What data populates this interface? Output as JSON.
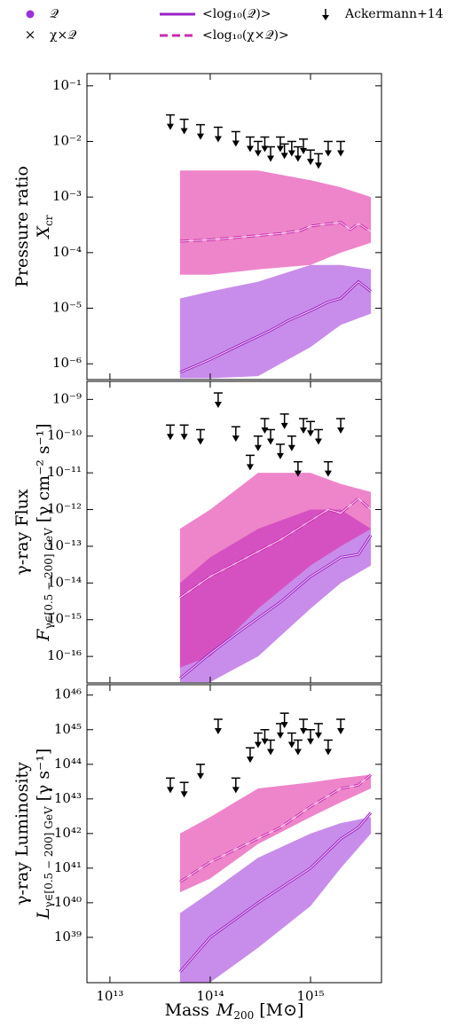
{
  "legend_title": null,
  "xlabel": {
    "text": "Mass",
    "symbol": "M",
    "sub": "200",
    "unit": "[M⊙]"
  },
  "chart_data": [
    {
      "type": "scatter",
      "log": true,
      "ylabel": {
        "text": "Pressure ratio",
        "symbol": "X",
        "sub": "cr"
      },
      "xlim": [
        5900000000000.0,
        5100000000000000.0
      ],
      "ylim": [
        5.2e-07,
        0.166
      ],
      "xticks": [
        10000000000000.0,
        100000000000000.0,
        1000000000000000.0
      ],
      "yticks": [
        {
          "value": 0.1,
          "label": "10⁻¹"
        },
        {
          "value": 0.01,
          "label": "10⁻²"
        },
        {
          "value": 0.001,
          "label": "10⁻³"
        },
        {
          "value": 0.0001,
          "label": "10⁻⁴"
        },
        {
          "value": 1e-05,
          "label": "10⁻⁵"
        },
        {
          "value": 1e-06,
          "label": "10⁻⁶"
        }
      ],
      "series": [
        {
          "name": "𝒬",
          "kind": "band",
          "color": "#9b30d9",
          "x": [
            50000000000000.0,
            100000000000000.0,
            300000000000000.0,
            1000000000000000.0,
            2000000000000000.0,
            4000000000000000.0
          ],
          "lower": [
            5.5e-07,
            5.5e-07,
            6e-07,
            2e-06,
            5e-06,
            8e-06
          ],
          "upper": [
            1.5e-05,
            2e-05,
            3e-05,
            6e-05,
            6e-05,
            5e-05
          ]
        },
        {
          "name": "χ×𝒬",
          "kind": "band",
          "color": "#e0209e",
          "x": [
            50000000000000.0,
            100000000000000.0,
            300000000000000.0,
            1000000000000000.0,
            2000000000000000.0,
            4000000000000000.0
          ],
          "lower": [
            4e-05,
            4e-05,
            5e-05,
            6e-05,
            0.0001,
            0.00015
          ],
          "upper": [
            0.003,
            0.003,
            0.003,
            0.002,
            0.0015,
            0.001
          ]
        },
        {
          "name": "<log₁₀(𝒬)>",
          "kind": "line",
          "color": "#9b22c8",
          "x": [
            50000000000000.0,
            100000000000000.0,
            200000000000000.0,
            400000000000000.0,
            600000000000000.0,
            1000000000000000.0,
            1500000000000000.0,
            2000000000000000.0,
            3000000000000000.0,
            4000000000000000.0
          ],
          "values": [
            7e-07,
            1.2e-06,
            2.2e-06,
            4e-06,
            6e-06,
            9e-06,
            1.3e-05,
            1.5e-05,
            3e-05,
            2e-05
          ]
        },
        {
          "name": "<log₁₀(χ×𝒬)>",
          "kind": "dash",
          "color": "#cc2aae",
          "x": [
            50000000000000.0,
            100000000000000.0,
            200000000000000.0,
            500000000000000.0,
            800000000000000.0,
            1000000000000000.0,
            1500000000000000.0,
            2000000000000000.0,
            2500000000000000.0,
            3000000000000000.0,
            4000000000000000.0
          ],
          "values": [
            0.00016,
            0.00017,
            0.00019,
            0.00022,
            0.00025,
            0.0003,
            0.00033,
            0.00035,
            0.00026,
            0.00033,
            0.00024
          ]
        },
        {
          "name": "Ackermann+14",
          "kind": "limit",
          "color": "#000000",
          "x": [
            40000000000000.0,
            55000000000000.0,
            80000000000000.0,
            120000000000000.0,
            180000000000000.0,
            250000000000000.0,
            300000000000000.0,
            350000000000000.0,
            400000000000000.0,
            500000000000000.0,
            550000000000000.0,
            650000000000000.0,
            750000000000000.0,
            850000000000000.0,
            1000000000000000.0,
            1200000000000000.0,
            1500000000000000.0,
            2000000000000000.0
          ],
          "values": [
            0.03,
            0.025,
            0.02,
            0.018,
            0.015,
            0.012,
            0.01,
            0.012,
            0.008,
            0.012,
            0.009,
            0.01,
            0.008,
            0.011,
            0.007,
            0.006,
            0.01,
            0.01
          ]
        }
      ]
    },
    {
      "type": "scatter",
      "log": true,
      "ylabel": {
        "text": "γ-ray Flux",
        "symbol": "F",
        "sub": "γ∈[0.5 − 200] GeV",
        "unit": "[γ cm⁻² s⁻¹]"
      },
      "xlim": [
        5900000000000.0,
        5100000000000000.0
      ],
      "ylim": [
        1.9e-17,
        3.1e-09
      ],
      "xticks": [
        10000000000000.0,
        100000000000000.0,
        1000000000000000.0
      ],
      "yticks": [
        {
          "value": 1e-09,
          "label": "10⁻⁹"
        },
        {
          "value": 1e-10,
          "label": "10⁻¹⁰"
        },
        {
          "value": 1e-11,
          "label": "10⁻¹¹"
        },
        {
          "value": 1e-12,
          "label": "10⁻¹²"
        },
        {
          "value": 1e-13,
          "label": "10⁻¹³"
        },
        {
          "value": 1e-14,
          "label": "10⁻¹⁴"
        },
        {
          "value": 1e-15,
          "label": "10⁻¹⁵"
        },
        {
          "value": 1e-16,
          "label": "10⁻¹⁶"
        }
      ],
      "series": [
        {
          "kind": "band",
          "color": "#9b30d9",
          "x": [
            50000000000000.0,
            100000000000000.0,
            300000000000000.0,
            1000000000000000.0,
            2000000000000000.0,
            4000000000000000.0
          ],
          "lower": [
            2e-17,
            2e-17,
            1e-16,
            2e-15,
            1e-14,
            3e-14
          ],
          "upper": [
            1e-14,
            5e-14,
            3e-13,
            1e-12,
            1e-12,
            3e-13
          ]
        },
        {
          "kind": "band",
          "color": "#e0209e",
          "x": [
            50000000000000.0,
            100000000000000.0,
            300000000000000.0,
            1000000000000000.0,
            2000000000000000.0,
            4000000000000000.0
          ],
          "lower": [
            5e-17,
            1e-16,
            2e-15,
            3e-14,
            1e-13,
            3e-13
          ],
          "upper": [
            3e-13,
            1e-12,
            1e-11,
            1e-11,
            5e-12,
            3e-12
          ]
        },
        {
          "kind": "line",
          "color": "#9b22c8",
          "x": [
            50000000000000.0,
            100000000000000.0,
            200000000000000.0,
            500000000000000.0,
            1000000000000000.0,
            1500000000000000.0,
            2000000000000000.0,
            3000000000000000.0,
            4000000000000000.0
          ],
          "values": [
            2.5e-17,
            1.2e-16,
            5e-16,
            3e-15,
            1.5e-14,
            3e-14,
            5e-14,
            6e-14,
            2e-13
          ]
        },
        {
          "kind": "dash",
          "color": "#cc2aae",
          "x": [
            50000000000000.0,
            100000000000000.0,
            200000000000000.0,
            500000000000000.0,
            1000000000000000.0,
            1500000000000000.0,
            2000000000000000.0,
            3000000000000000.0,
            4000000000000000.0
          ],
          "values": [
            4e-15,
            1.5e-14,
            4e-14,
            1.5e-13,
            5e-13,
            1e-12,
            8e-13,
            2e-12,
            1e-12
          ]
        },
        {
          "kind": "limit",
          "color": "#000000",
          "x": [
            40000000000000.0,
            55000000000000.0,
            80000000000000.0,
            120000000000000.0,
            180000000000000.0,
            250000000000000.0,
            300000000000000.0,
            350000000000000.0,
            400000000000000.0,
            500000000000000.0,
            550000000000000.0,
            650000000000000.0,
            750000000000000.0,
            850000000000000.0,
            1000000000000000.0,
            1200000000000000.0,
            1500000000000000.0,
            2000000000000000.0
          ],
          "values": [
            2e-10,
            2e-10,
            1.5e-10,
            1.5e-09,
            1.8e-10,
            3e-11,
            1e-10,
            3e-10,
            1.5e-10,
            6e-11,
            4e-10,
            1e-10,
            2e-11,
            3e-10,
            2.5e-10,
            1.5e-10,
            2e-11,
            3e-10
          ]
        }
      ]
    },
    {
      "type": "scatter",
      "log": true,
      "ylabel": {
        "text": "γ-ray Luminosity",
        "symbol": "L",
        "sub": "γ∈[0.5 − 200] GeV",
        "unit": "[γ s⁻¹]"
      },
      "xlim": [
        5900000000000.0,
        5100000000000000.0
      ],
      "ylim": [
        4.9e+37,
        2e+46
      ],
      "xticks": [
        {
          "value": 10000000000000.0,
          "label": "10¹³"
        },
        {
          "value": 100000000000000.0,
          "label": "10¹⁴"
        },
        {
          "value": 1000000000000000.0,
          "label": "10¹⁵"
        }
      ],
      "yticks": [
        {
          "value": 1e+46,
          "label": "10⁴⁶"
        },
        {
          "value": 1e+45,
          "label": "10⁴⁵"
        },
        {
          "value": 1e+44,
          "label": "10⁴⁴"
        },
        {
          "value": 1e+43,
          "label": "10⁴³"
        },
        {
          "value": 1e+42,
          "label": "10⁴²"
        },
        {
          "value": 1e+41,
          "label": "10⁴¹"
        },
        {
          "value": 1e+40,
          "label": "10⁴⁰"
        },
        {
          "value": 1e+39,
          "label": "10³⁹"
        }
      ],
      "series": [
        {
          "kind": "band",
          "color": "#9b30d9",
          "x": [
            50000000000000.0,
            100000000000000.0,
            300000000000000.0,
            1000000000000000.0,
            2000000000000000.0,
            4000000000000000.0
          ],
          "lower": [
            5e+37,
            5e+37,
            5e+38,
            8e+39,
            1e+41,
            1e+42
          ],
          "upper": [
            5e+39,
            2e+40,
            2e+41,
            1e+42,
            2e+42,
            3e+42
          ]
        },
        {
          "kind": "band",
          "color": "#e0209e",
          "x": [
            50000000000000.0,
            100000000000000.0,
            300000000000000.0,
            1000000000000000.0,
            2000000000000000.0,
            4000000000000000.0
          ],
          "lower": [
            2e+40,
            5e+40,
            5e+41,
            3e+42,
            8e+42,
            2e+43
          ],
          "upper": [
            1e+42,
            3e+42,
            2e+43,
            3e+43,
            4e+43,
            5e+43
          ]
        },
        {
          "kind": "line",
          "color": "#9b22c8",
          "x": [
            50000000000000.0,
            100000000000000.0,
            300000000000000.0,
            1000000000000000.0,
            2000000000000000.0,
            3000000000000000.0,
            4000000000000000.0
          ],
          "values": [
            1e+38,
            1e+39,
            1e+40,
            1e+41,
            7e+41,
            1.5e+42,
            4e+42
          ]
        },
        {
          "kind": "dash",
          "color": "#cc2aae",
          "x": [
            50000000000000.0,
            100000000000000.0,
            500000000000000.0,
            1000000000000000.0,
            2000000000000000.0,
            3000000000000000.0,
            4000000000000000.0
          ],
          "values": [
            4e+40,
            1.5e+41,
            1.5e+42,
            6e+42,
            2e+43,
            2.5e+43,
            5e+43
          ]
        },
        {
          "kind": "limit",
          "color": "#000000",
          "x": [
            40000000000000.0,
            55000000000000.0,
            80000000000000.0,
            120000000000000.0,
            180000000000000.0,
            250000000000000.0,
            300000000000000.0,
            350000000000000.0,
            400000000000000.0,
            500000000000000.0,
            550000000000000.0,
            650000000000000.0,
            750000000000000.0,
            850000000000000.0,
            1000000000000000.0,
            1200000000000000.0,
            1500000000000000.0,
            2000000000000000.0
          ],
          "values": [
            4e+43,
            3e+43,
            1e+44,
            2e+45,
            4e+43,
            3e+44,
            8e+44,
            1e+45,
            5e+44,
            1.5e+45,
            3e+45,
            8e+44,
            5e+44,
            2e+45,
            1e+45,
            1.5e+45,
            5e+44,
            2e+45
          ]
        }
      ]
    }
  ]
}
